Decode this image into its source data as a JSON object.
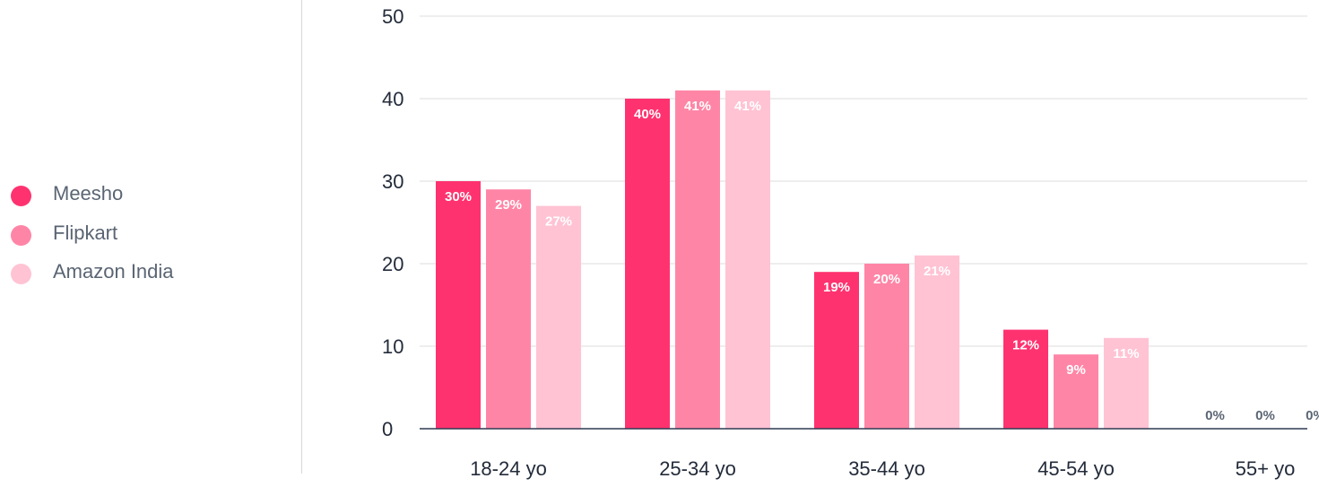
{
  "legend": {
    "items": [
      {
        "label": "Meesho",
        "color": "#ff3270"
      },
      {
        "label": "Flipkart",
        "color": "#ff85a6"
      },
      {
        "label": "Amazon India",
        "color": "#ffc3d4"
      }
    ]
  },
  "chart_data": {
    "type": "bar",
    "title": "",
    "xlabel": "",
    "ylabel": "",
    "categories": [
      "18-24 yo",
      "25-34 yo",
      "35-44 yo",
      "45-54 yo",
      "55+ yo"
    ],
    "series": [
      {
        "name": "Meesho",
        "values": [
          30,
          40,
          19,
          12,
          0
        ],
        "labels": [
          "30%",
          "40%",
          "19%",
          "12%",
          "0%"
        ],
        "color": "#ff3270"
      },
      {
        "name": "Flipkart",
        "values": [
          29,
          41,
          20,
          9,
          0
        ],
        "labels": [
          "29%",
          "41%",
          "20%",
          "9%",
          "0%"
        ],
        "color": "#ff85a6"
      },
      {
        "name": "Amazon India",
        "values": [
          27,
          41,
          21,
          11,
          0
        ],
        "labels": [
          "27%",
          "41%",
          "21%",
          "11%",
          "0%"
        ],
        "color": "#ffc3d4"
      }
    ],
    "ylim": [
      0,
      50
    ],
    "yticks": [
      0,
      10,
      20,
      30,
      40,
      50
    ],
    "ytick_labels": [
      "0",
      "10",
      "20",
      "30",
      "40",
      "50"
    ],
    "grid": true,
    "legend_position": "left",
    "colors": {
      "grid": "#dcdcdc",
      "axis": "#2f3a52",
      "tick_text": "#232b3a",
      "zero_label": "#5a6573",
      "bar_label": "#ffffff"
    }
  }
}
